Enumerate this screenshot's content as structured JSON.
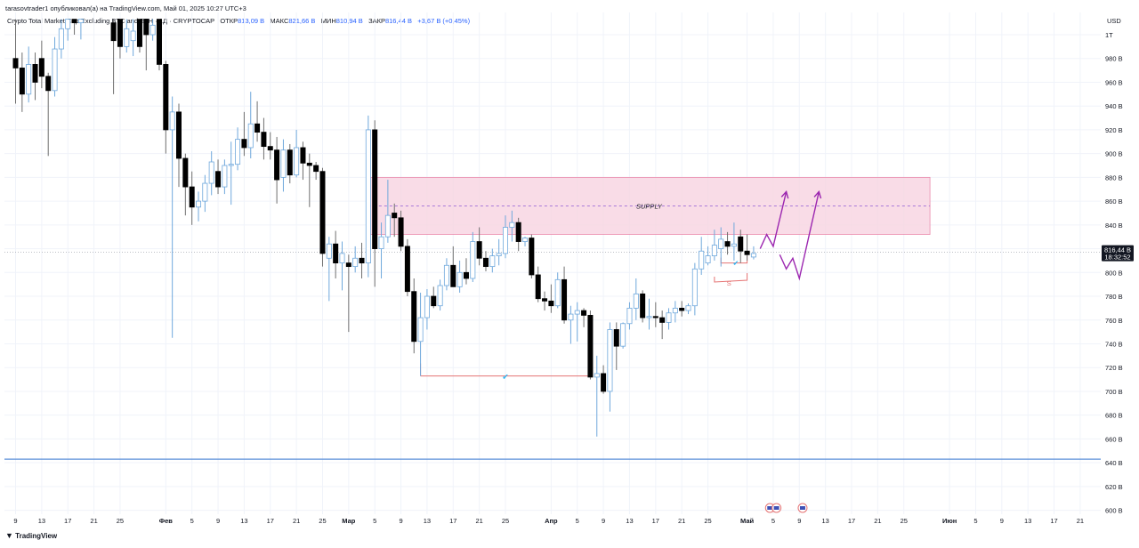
{
  "header": {
    "published_line": "tarasovtrader1 опубликовал(а) на TradingView.com, Май 01, 2025 10:27 UTC+3"
  },
  "legend": {
    "symbol": "Crypto Total Market Cap Excluding BTC and ETH",
    "interval": "1Д",
    "exchange": "CRYPTOCAP",
    "open_label": "ОТКР",
    "open_value": "813,09 B",
    "high_label": "МАКС",
    "high_value": "821,66 B",
    "low_label": "МИН",
    "low_value": "810,94 B",
    "close_label": "ЗАКР",
    "close_value": "816,44 B",
    "change": "+3,67 B (+0,45%)"
  },
  "footer": {
    "logo_text": "TradingView"
  },
  "currency_label": "USD",
  "colors": {
    "up_fill": "#ffffff",
    "up_border": "#6fa8dc",
    "down_fill": "#000000",
    "wick": "#6f6f6f",
    "supply_fill": "#f8d7e3",
    "supply_border": "#e8799f",
    "support_line": "#5b8fd9",
    "projection_arrow": "#9c27b0",
    "marker_line": "#e57373",
    "check_mark": "#29b6f6",
    "price_badge": "#131722"
  },
  "chart_data": {
    "type": "candlestick",
    "y_axis": {
      "unit": "B",
      "range": [
        592,
        1013
      ],
      "ticks": [
        "1T",
        "980 B",
        "960 B",
        "940 B",
        "920 B",
        "900 B",
        "880 B",
        "860 B",
        "840 B",
        "820 B",
        "800 B",
        "780 B",
        "760 B",
        "740 B",
        "720 B",
        "700 B",
        "680 B",
        "660 B",
        "640 B",
        "620 B",
        "600 B"
      ],
      "tick_values": [
        1000,
        980,
        960,
        940,
        920,
        900,
        880,
        860,
        840,
        820,
        800,
        780,
        760,
        740,
        720,
        700,
        680,
        660,
        640,
        620,
        600
      ]
    },
    "x_axis": {
      "ticks": [
        "9",
        "13",
        "17",
        "21",
        "25",
        "Фев",
        "5",
        "9",
        "13",
        "17",
        "21",
        "25",
        "Мар",
        "5",
        "9",
        "13",
        "17",
        "21",
        "25",
        "Апр",
        "5",
        "9",
        "13",
        "17",
        "21",
        "25",
        "Май",
        "5",
        "9",
        "13",
        "17",
        "21",
        "25",
        "Июн",
        "5",
        "9",
        "13",
        "17",
        "21"
      ],
      "tick_days": [
        9,
        13,
        17,
        21,
        25,
        32,
        36,
        40,
        44,
        48,
        52,
        56,
        60,
        64,
        68,
        72,
        76,
        80,
        84,
        91,
        95,
        99,
        103,
        107,
        111,
        115,
        121,
        125,
        129,
        133,
        137,
        141,
        145,
        152,
        156,
        160,
        164,
        168,
        172
      ],
      "bold_ticks": [
        "Фев",
        "Мар",
        "Апр",
        "Май",
        "Июн"
      ]
    },
    "candles": [
      {
        "d": 9,
        "o": 980,
        "h": 1013,
        "l": 942,
        "c": 972
      },
      {
        "d": 10,
        "o": 972,
        "h": 985,
        "l": 935,
        "c": 950
      },
      {
        "d": 11,
        "o": 950,
        "h": 990,
        "l": 943,
        "c": 975
      },
      {
        "d": 12,
        "o": 975,
        "h": 985,
        "l": 945,
        "c": 960
      },
      {
        "d": 13,
        "o": 980,
        "h": 995,
        "l": 955,
        "c": 965
      },
      {
        "d": 14,
        "o": 965,
        "h": 968,
        "l": 898,
        "c": 953
      },
      {
        "d": 15,
        "o": 953,
        "h": 998,
        "l": 948,
        "c": 988
      },
      {
        "d": 16,
        "o": 988,
        "h": 1013,
        "l": 980,
        "c": 1005
      },
      {
        "d": 17,
        "o": 1005,
        "h": 1013,
        "l": 995,
        "c": 1013
      },
      {
        "d": 18,
        "o": 1013,
        "h": 1013,
        "l": 1000,
        "c": 1010
      },
      {
        "d": 19,
        "o": 1010,
        "h": 1013,
        "l": 996,
        "c": 1013
      },
      {
        "d": 24,
        "o": 1010,
        "h": 1013,
        "l": 950,
        "c": 995
      },
      {
        "d": 25,
        "o": 1013,
        "h": 1013,
        "l": 980,
        "c": 990
      },
      {
        "d": 26,
        "o": 990,
        "h": 1013,
        "l": 985,
        "c": 1005
      },
      {
        "d": 27,
        "o": 995,
        "h": 1013,
        "l": 982,
        "c": 1003
      },
      {
        "d": 28,
        "o": 1013,
        "h": 1013,
        "l": 985,
        "c": 990
      },
      {
        "d": 29,
        "o": 1013,
        "h": 1013,
        "l": 970,
        "c": 1000
      },
      {
        "d": 30,
        "o": 1000,
        "h": 1013,
        "l": 995,
        "c": 1008
      },
      {
        "d": 31,
        "o": 1013,
        "h": 1013,
        "l": 970,
        "c": 975
      },
      {
        "d": 32,
        "o": 975,
        "h": 978,
        "l": 900,
        "c": 920
      },
      {
        "d": 33,
        "o": 920,
        "h": 948,
        "l": 745,
        "c": 935
      },
      {
        "d": 34,
        "o": 935,
        "h": 942,
        "l": 872,
        "c": 896
      },
      {
        "d": 35,
        "o": 896,
        "h": 900,
        "l": 848,
        "c": 872
      },
      {
        "d": 36,
        "o": 872,
        "h": 885,
        "l": 840,
        "c": 855
      },
      {
        "d": 37,
        "o": 855,
        "h": 868,
        "l": 843,
        "c": 860
      },
      {
        "d": 38,
        "o": 860,
        "h": 882,
        "l": 851,
        "c": 875
      },
      {
        "d": 39,
        "o": 875,
        "h": 902,
        "l": 865,
        "c": 893
      },
      {
        "d": 40,
        "o": 885,
        "h": 895,
        "l": 866,
        "c": 872
      },
      {
        "d": 41,
        "o": 872,
        "h": 895,
        "l": 866,
        "c": 890
      },
      {
        "d": 42,
        "o": 890,
        "h": 910,
        "l": 857,
        "c": 891
      },
      {
        "d": 43,
        "o": 891,
        "h": 922,
        "l": 886,
        "c": 912
      },
      {
        "d": 44,
        "o": 912,
        "h": 935,
        "l": 898,
        "c": 905
      },
      {
        "d": 45,
        "o": 905,
        "h": 952,
        "l": 896,
        "c": 925
      },
      {
        "d": 46,
        "o": 925,
        "h": 944,
        "l": 910,
        "c": 918
      },
      {
        "d": 47,
        "o": 918,
        "h": 930,
        "l": 895,
        "c": 906
      },
      {
        "d": 48,
        "o": 906,
        "h": 918,
        "l": 895,
        "c": 903
      },
      {
        "d": 49,
        "o": 903,
        "h": 914,
        "l": 858,
        "c": 878
      },
      {
        "d": 50,
        "o": 880,
        "h": 912,
        "l": 868,
        "c": 903
      },
      {
        "d": 51,
        "o": 903,
        "h": 908,
        "l": 875,
        "c": 882
      },
      {
        "d": 52,
        "o": 882,
        "h": 920,
        "l": 880,
        "c": 905
      },
      {
        "d": 53,
        "o": 905,
        "h": 910,
        "l": 878,
        "c": 892
      },
      {
        "d": 54,
        "o": 892,
        "h": 900,
        "l": 855,
        "c": 890
      },
      {
        "d": 55,
        "o": 890,
        "h": 893,
        "l": 878,
        "c": 885
      },
      {
        "d": 56,
        "o": 885,
        "h": 888,
        "l": 805,
        "c": 816
      },
      {
        "d": 57,
        "o": 812,
        "h": 830,
        "l": 776,
        "c": 824
      },
      {
        "d": 58,
        "o": 824,
        "h": 835,
        "l": 795,
        "c": 808
      },
      {
        "d": 59,
        "o": 808,
        "h": 826,
        "l": 785,
        "c": 816
      },
      {
        "d": 60,
        "o": 808,
        "h": 815,
        "l": 750,
        "c": 805
      },
      {
        "d": 61,
        "o": 805,
        "h": 822,
        "l": 800,
        "c": 812
      },
      {
        "d": 62,
        "o": 812,
        "h": 825,
        "l": 795,
        "c": 808
      },
      {
        "d": 63,
        "o": 808,
        "h": 932,
        "l": 796,
        "c": 920
      },
      {
        "d": 64,
        "o": 920,
        "h": 928,
        "l": 788,
        "c": 820
      },
      {
        "d": 65,
        "o": 820,
        "h": 842,
        "l": 795,
        "c": 830
      },
      {
        "d": 66,
        "o": 830,
        "h": 878,
        "l": 825,
        "c": 848
      },
      {
        "d": 67,
        "o": 850,
        "h": 858,
        "l": 830,
        "c": 846
      },
      {
        "d": 68,
        "o": 846,
        "h": 852,
        "l": 818,
        "c": 822
      },
      {
        "d": 69,
        "o": 822,
        "h": 828,
        "l": 780,
        "c": 784
      },
      {
        "d": 70,
        "o": 784,
        "h": 795,
        "l": 732,
        "c": 742
      },
      {
        "d": 71,
        "o": 742,
        "h": 783,
        "l": 713,
        "c": 762
      },
      {
        "d": 72,
        "o": 762,
        "h": 786,
        "l": 752,
        "c": 780
      },
      {
        "d": 73,
        "o": 780,
        "h": 788,
        "l": 770,
        "c": 772
      },
      {
        "d": 74,
        "o": 772,
        "h": 794,
        "l": 768,
        "c": 789
      },
      {
        "d": 75,
        "o": 789,
        "h": 812,
        "l": 785,
        "c": 806
      },
      {
        "d": 76,
        "o": 806,
        "h": 822,
        "l": 792,
        "c": 788
      },
      {
        "d": 77,
        "o": 788,
        "h": 810,
        "l": 783,
        "c": 800
      },
      {
        "d": 78,
        "o": 800,
        "h": 812,
        "l": 790,
        "c": 795
      },
      {
        "d": 79,
        "o": 795,
        "h": 834,
        "l": 792,
        "c": 826
      },
      {
        "d": 80,
        "o": 826,
        "h": 838,
        "l": 806,
        "c": 812
      },
      {
        "d": 81,
        "o": 812,
        "h": 818,
        "l": 801,
        "c": 805
      },
      {
        "d": 82,
        "o": 805,
        "h": 820,
        "l": 800,
        "c": 814
      },
      {
        "d": 83,
        "o": 814,
        "h": 828,
        "l": 806,
        "c": 816
      },
      {
        "d": 84,
        "o": 816,
        "h": 848,
        "l": 812,
        "c": 838
      },
      {
        "d": 85,
        "o": 838,
        "h": 852,
        "l": 826,
        "c": 842
      },
      {
        "d": 86,
        "o": 842,
        "h": 846,
        "l": 818,
        "c": 826
      },
      {
        "d": 87,
        "o": 826,
        "h": 830,
        "l": 822,
        "c": 829
      },
      {
        "d": 88,
        "o": 829,
        "h": 832,
        "l": 795,
        "c": 798
      },
      {
        "d": 89,
        "o": 798,
        "h": 805,
        "l": 775,
        "c": 778
      },
      {
        "d": 90,
        "o": 778,
        "h": 784,
        "l": 768,
        "c": 776
      },
      {
        "d": 91,
        "o": 776,
        "h": 790,
        "l": 766,
        "c": 772
      },
      {
        "d": 92,
        "o": 772,
        "h": 800,
        "l": 770,
        "c": 794
      },
      {
        "d": 93,
        "o": 794,
        "h": 805,
        "l": 757,
        "c": 760
      },
      {
        "d": 94,
        "o": 760,
        "h": 772,
        "l": 740,
        "c": 765
      },
      {
        "d": 95,
        "o": 765,
        "h": 775,
        "l": 742,
        "c": 768
      },
      {
        "d": 96,
        "o": 768,
        "h": 770,
        "l": 754,
        "c": 764
      },
      {
        "d": 97,
        "o": 764,
        "h": 768,
        "l": 710,
        "c": 712
      },
      {
        "d": 98,
        "o": 712,
        "h": 730,
        "l": 662,
        "c": 715
      },
      {
        "d": 99,
        "o": 715,
        "h": 722,
        "l": 698,
        "c": 700
      },
      {
        "d": 100,
        "o": 700,
        "h": 758,
        "l": 683,
        "c": 752
      },
      {
        "d": 101,
        "o": 752,
        "h": 758,
        "l": 718,
        "c": 738
      },
      {
        "d": 102,
        "o": 738,
        "h": 758,
        "l": 736,
        "c": 757
      },
      {
        "d": 103,
        "o": 757,
        "h": 775,
        "l": 752,
        "c": 770
      },
      {
        "d": 104,
        "o": 770,
        "h": 795,
        "l": 760,
        "c": 782
      },
      {
        "d": 105,
        "o": 782,
        "h": 785,
        "l": 758,
        "c": 762
      },
      {
        "d": 106,
        "o": 762,
        "h": 778,
        "l": 752,
        "c": 763
      },
      {
        "d": 107,
        "o": 763,
        "h": 775,
        "l": 754,
        "c": 762
      },
      {
        "d": 108,
        "o": 762,
        "h": 768,
        "l": 744,
        "c": 758
      },
      {
        "d": 109,
        "o": 758,
        "h": 770,
        "l": 752,
        "c": 766
      },
      {
        "d": 110,
        "o": 766,
        "h": 776,
        "l": 758,
        "c": 770
      },
      {
        "d": 111,
        "o": 770,
        "h": 776,
        "l": 763,
        "c": 768
      },
      {
        "d": 112,
        "o": 768,
        "h": 774,
        "l": 765,
        "c": 772
      },
      {
        "d": 113,
        "o": 772,
        "h": 808,
        "l": 764,
        "c": 803
      },
      {
        "d": 114,
        "o": 803,
        "h": 830,
        "l": 798,
        "c": 818
      },
      {
        "d": 115,
        "o": 808,
        "h": 822,
        "l": 806,
        "c": 814
      },
      {
        "d": 116,
        "o": 814,
        "h": 836,
        "l": 810,
        "c": 823
      },
      {
        "d": 117,
        "o": 820,
        "h": 838,
        "l": 805,
        "c": 828
      },
      {
        "d": 118,
        "o": 826,
        "h": 834,
        "l": 815,
        "c": 822
      },
      {
        "d": 119,
        "o": 822,
        "h": 842,
        "l": 810,
        "c": 824
      },
      {
        "d": 120,
        "o": 830,
        "h": 836,
        "l": 808,
        "c": 818
      },
      {
        "d": 121,
        "o": 818,
        "h": 832,
        "l": 810,
        "c": 815
      },
      {
        "d": 122,
        "o": 813,
        "h": 822,
        "l": 811,
        "c": 816
      }
    ],
    "annotations": {
      "supply_zone_label": "SUPPLY",
      "supply_zone": {
        "from_day": 63,
        "to_day": 149,
        "low": 832,
        "high": 880,
        "mid": 856
      },
      "support_line_value": 643,
      "swept_low_marker": {
        "from_day": 71,
        "to_day": 97,
        "value": 713
      },
      "recent_low_marker": {
        "from_day": 117,
        "to_day": 121,
        "value": 808
      },
      "s_marker_label": "S",
      "s_marker": {
        "from_day": 116,
        "to_day": 121,
        "value": 792
      },
      "projection_up": [
        [
          123,
          820
        ],
        [
          124,
          832
        ],
        [
          125,
          822
        ],
        [
          127,
          868
        ]
      ],
      "projection_down_up": [
        [
          126,
          815
        ],
        [
          127,
          803
        ],
        [
          128,
          812
        ],
        [
          129,
          795
        ],
        [
          132,
          868
        ]
      ],
      "current_price_value": 817,
      "current_price_label": "816,44 B",
      "countdown_label": "18:32:52"
    }
  }
}
